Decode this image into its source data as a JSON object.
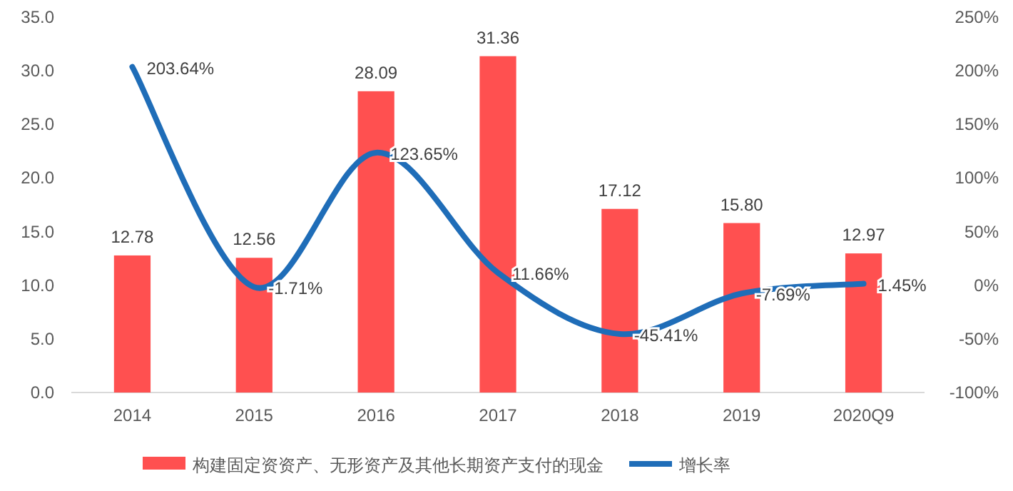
{
  "chart_data": {
    "type": "bar",
    "categories": [
      "2014",
      "2015",
      "2016",
      "2017",
      "2018",
      "2019",
      "2020Q9"
    ],
    "series": [
      {
        "name": "构建固定资资产、无形资产及其他长期资产支付的现金",
        "color": "#ff5050",
        "values": [
          12.78,
          12.56,
          28.09,
          31.36,
          17.12,
          15.8,
          12.97
        ],
        "value_labels": [
          "12.78",
          "12.56",
          "28.09",
          "31.36",
          "17.12",
          "15.80",
          "12.97"
        ]
      },
      {
        "name": "增长率",
        "type": "line",
        "axis": "y2",
        "color": "#1f6db8",
        "values": [
          203.64,
          -1.71,
          123.65,
          11.66,
          -45.41,
          -7.69,
          1.45
        ],
        "value_labels": [
          "203.64%",
          "-1.71%",
          "123.65%",
          "11.66%",
          "-45.41%",
          "-7.69%",
          "1.45%"
        ]
      }
    ],
    "ylim": [
      0,
      35
    ],
    "yticks": [
      {
        "value": 0,
        "label": "0.0"
      },
      {
        "value": 5,
        "label": "5.0"
      },
      {
        "value": 10,
        "label": "10.0"
      },
      {
        "value": 15,
        "label": "15.0"
      },
      {
        "value": 20,
        "label": "20.0"
      },
      {
        "value": 25,
        "label": "25.0"
      },
      {
        "value": 30,
        "label": "30.0"
      },
      {
        "value": 35,
        "label": "35.0"
      }
    ],
    "y2lim": [
      -100,
      250
    ],
    "y2ticks": [
      {
        "value": -100,
        "label": "-100%"
      },
      {
        "value": -50,
        "label": "-50%"
      },
      {
        "value": 0,
        "label": "0%"
      },
      {
        "value": 50,
        "label": "50%"
      },
      {
        "value": 100,
        "label": "100%"
      },
      {
        "value": 150,
        "label": "150%"
      },
      {
        "value": 200,
        "label": "200%"
      },
      {
        "value": 250,
        "label": "250%"
      }
    ],
    "grid": false,
    "legend": "bottom",
    "marker": "none",
    "line_style": "solid"
  }
}
